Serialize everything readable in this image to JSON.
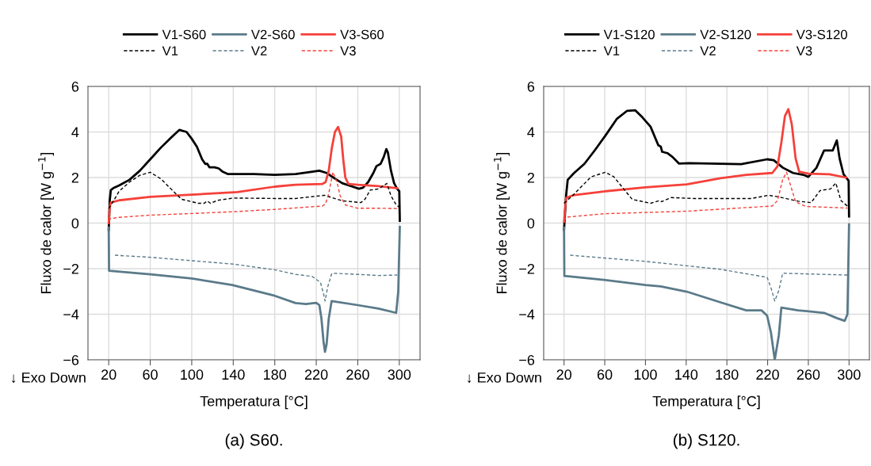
{
  "chart_data": [
    {
      "type": "line",
      "xlabel": "Temperatura [°C]",
      "ylabel": "Fluxo de calor [W g$^{−1}$]",
      "xlim": [
        0,
        320
      ],
      "ylim": [
        -6,
        6
      ],
      "xticks": [
        20,
        60,
        100,
        140,
        180,
        220,
        260,
        300
      ],
      "yticks": [
        -6,
        -4,
        -2,
        0,
        2,
        4,
        6
      ],
      "grid": true,
      "legend": "top",
      "annotations": [
        "↓ Exo Down",
        "(a) S60."
      ],
      "series": [
        {
          "name": "V1-S60",
          "color": "#000000",
          "line_style": "solid",
          "x": [
            20,
            21,
            22,
            25,
            30,
            40,
            50,
            60,
            70,
            80,
            88,
            95,
            100,
            105,
            110,
            113,
            115,
            117,
            122,
            126,
            130,
            135,
            140,
            160,
            180,
            200,
            215,
            223,
            230,
            238,
            245,
            255,
            261,
            265,
            270,
            275,
            278,
            282,
            285,
            287.5,
            289,
            292,
            295,
            298,
            300,
            300.5
          ],
          "values": [
            -0.3,
            1.0,
            1.45,
            1.55,
            1.65,
            1.9,
            2.3,
            2.8,
            3.3,
            3.75,
            4.09,
            4.0,
            3.7,
            3.35,
            2.8,
            2.6,
            2.6,
            2.45,
            2.45,
            2.4,
            2.25,
            2.15,
            2.15,
            2.15,
            2.12,
            2.15,
            2.25,
            2.3,
            2.2,
            1.95,
            1.75,
            1.6,
            1.51,
            1.55,
            1.8,
            2.2,
            2.5,
            2.6,
            2.9,
            3.25,
            3.1,
            2.3,
            1.75,
            1.5,
            1.4,
            0.1
          ]
        },
        {
          "name": "V1",
          "color": "#000000",
          "line_style": "dashed",
          "x": [
            20,
            25,
            30,
            40,
            50,
            60,
            70,
            80,
            90,
            106,
            112,
            115,
            118,
            125,
            140,
            180,
            200,
            228,
            245,
            263,
            267,
            272,
            280,
            288,
            292,
            297,
            300
          ],
          "values": [
            0.64,
            1.0,
            1.4,
            1.8,
            2.1,
            2.23,
            1.95,
            1.5,
            1.05,
            0.87,
            0.87,
            0.97,
            0.87,
            1.0,
            1.1,
            1.08,
            1.08,
            1.22,
            0.98,
            0.9,
            1.05,
            1.45,
            1.5,
            1.74,
            1.2,
            0.8,
            0.7
          ]
        },
        {
          "name": "V2-S60",
          "color": "#5a7a89",
          "line_style": "solid",
          "x": [
            20,
            20.3,
            60,
            100,
            139,
            180,
            200,
            210,
            220,
            223,
            225,
            227,
            228.4,
            230,
            232,
            234.8,
            260,
            280,
            297,
            299,
            300.5
          ],
          "values": [
            -0.2,
            -2.09,
            -2.25,
            -2.43,
            -2.72,
            -3.19,
            -3.51,
            -3.55,
            -3.5,
            -3.6,
            -4.2,
            -5.2,
            -5.65,
            -5.3,
            -4.2,
            -3.42,
            -3.6,
            -3.75,
            -3.94,
            -3.0,
            -0.17
          ]
        },
        {
          "name": "V2",
          "color": "#5a7a89",
          "line_style": "dashed",
          "x": [
            26,
            60,
            100,
            140,
            180,
            200,
            216,
            224,
            227,
            228.5,
            231,
            235,
            260,
            280,
            298
          ],
          "values": [
            -1.41,
            -1.5,
            -1.65,
            -1.8,
            -2.05,
            -2.25,
            -2.34,
            -2.6,
            -3.1,
            -3.42,
            -2.8,
            -2.2,
            -2.25,
            -2.3,
            -2.28
          ]
        },
        {
          "name": "V3-S60",
          "color": "#f5413a",
          "line_style": "solid",
          "x": [
            20,
            21,
            22,
            30,
            60,
            100,
            144,
            180,
            200,
            226,
            229,
            232,
            235,
            238,
            241,
            244,
            246,
            248,
            251,
            260,
            280,
            298
          ],
          "values": [
            0.0,
            0.7,
            0.9,
            1.0,
            1.15,
            1.25,
            1.36,
            1.6,
            1.68,
            1.72,
            1.8,
            2.3,
            3.3,
            4.0,
            4.22,
            3.8,
            2.8,
            2.0,
            1.72,
            1.68,
            1.62,
            1.53
          ]
        },
        {
          "name": "V3",
          "color": "#f5413a",
          "line_style": "dashed",
          "x": [
            20,
            22,
            30,
            60,
            100,
            140,
            180,
            226,
            229,
            232,
            236,
            240,
            243,
            248,
            260,
            280,
            298
          ],
          "values": [
            0.1,
            0.2,
            0.25,
            0.35,
            0.42,
            0.5,
            0.6,
            0.75,
            0.85,
            1.3,
            2.24,
            1.8,
            1.2,
            0.8,
            0.65,
            0.65,
            0.64
          ]
        }
      ]
    },
    {
      "type": "line",
      "xlabel": "Temperatura [°C]",
      "ylabel": "Fluxo de calor [W g$^{−1}$]",
      "xlim": [
        0,
        320
      ],
      "ylim": [
        -6,
        6
      ],
      "xticks": [
        20,
        60,
        100,
        140,
        180,
        220,
        260,
        300
      ],
      "yticks": [
        -6,
        -4,
        -2,
        0,
        2,
        4,
        6
      ],
      "grid": true,
      "legend": "top",
      "annotations": [
        "↓ Exo Down",
        "(b) S120."
      ],
      "series": [
        {
          "name": "V1-S120",
          "color": "#000000",
          "line_style": "solid",
          "x": [
            20,
            22,
            23.6,
            29.9,
            40,
            50.3,
            60.5,
            72,
            82,
            90,
            97,
            105,
            112.6,
            115,
            116.4,
            121.5,
            126.6,
            133,
            143,
            194,
            219.5,
            226,
            235,
            245,
            255,
            260,
            268,
            275.5,
            284,
            288,
            290.7,
            294.6,
            299.6,
            300
          ],
          "values": [
            -0.3,
            1.2,
            1.9,
            2.2,
            2.6,
            3.2,
            3.83,
            4.58,
            4.93,
            4.95,
            4.64,
            4.23,
            3.42,
            3.36,
            3.13,
            3.07,
            2.9,
            2.61,
            2.63,
            2.59,
            2.8,
            2.76,
            2.43,
            2.2,
            2.12,
            2.03,
            2.43,
            3.19,
            3.19,
            3.63,
            2.84,
            2.14,
            1.86,
            0.29
          ]
        },
        {
          "name": "V1",
          "color": "#000000",
          "line_style": "dashed",
          "x": [
            20,
            28.7,
            46.5,
            60.5,
            69,
            79.5,
            87,
            105,
            114,
            116,
            125,
            148,
            204,
            220.8,
            229.7,
            250,
            262.7,
            271.6,
            281.8,
            287,
            292,
            299.6
          ],
          "values": [
            0.87,
            1.22,
            2.03,
            2.23,
            2.03,
            1.45,
            1.04,
            0.87,
            0.99,
            0.94,
            1.12,
            1.08,
            1.08,
            1.22,
            1.16,
            0.96,
            0.9,
            1.43,
            1.5,
            1.76,
            0.99,
            0.7
          ]
        },
        {
          "name": "V2-S120",
          "color": "#5a7a89",
          "line_style": "solid",
          "x": [
            20,
            20.3,
            59,
            100,
            115,
            140.6,
            173.7,
            199,
            214,
            219.5,
            223.3,
            227,
            231,
            233.5,
            250,
            275.5,
            288,
            295.8,
            298.4,
            300
          ],
          "values": [
            -0.2,
            -2.32,
            -2.49,
            -2.72,
            -2.78,
            -3.01,
            -3.48,
            -3.83,
            -3.83,
            -4.06,
            -4.81,
            -6.0,
            -4.93,
            -3.71,
            -3.83,
            -3.94,
            -4.17,
            -4.29,
            -4.0,
            -0.06
          ]
        },
        {
          "name": "V2",
          "color": "#5a7a89",
          "line_style": "dashed",
          "x": [
            26,
            100,
            173.7,
            219.5,
            223.3,
            227,
            231,
            234.8,
            298.4
          ],
          "values": [
            -1.41,
            -1.68,
            -2.03,
            -2.38,
            -2.84,
            -3.42,
            -2.96,
            -2.2,
            -2.28
          ]
        },
        {
          "name": "V3-S120",
          "color": "#f5413a",
          "line_style": "solid",
          "x": [
            20,
            22,
            28.7,
            59,
            100,
            140.6,
            173.7,
            199,
            224.6,
            229.7,
            233.5,
            237,
            240.4,
            243.7,
            247.5,
            251,
            260,
            280.6,
            297
          ],
          "values": [
            0.06,
            1.1,
            1.22,
            1.39,
            1.57,
            1.7,
            1.97,
            2.12,
            2.2,
            2.49,
            3.54,
            4.7,
            5.0,
            4.35,
            2.84,
            2.26,
            2.17,
            2.14,
            2.0
          ]
        },
        {
          "name": "V3",
          "color": "#f5413a",
          "line_style": "dashed",
          "x": [
            20,
            22,
            59,
            140,
            224.6,
            229.7,
            234.8,
            238.6,
            242.4,
            247.5,
            257.7,
            298.4
          ],
          "values": [
            0.1,
            0.26,
            0.41,
            0.52,
            0.75,
            0.99,
            1.91,
            2.23,
            1.68,
            0.93,
            0.73,
            0.66
          ]
        }
      ]
    }
  ]
}
